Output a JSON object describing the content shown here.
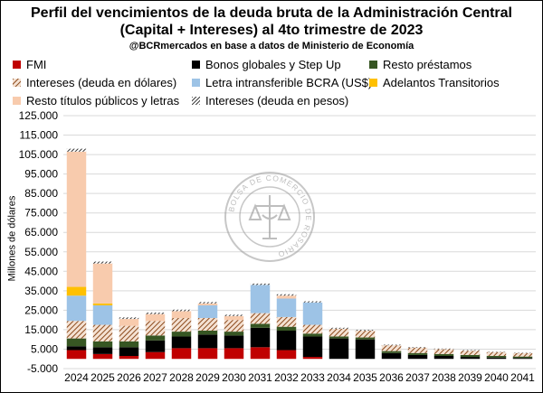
{
  "title_line1": "Perfil del vencimientos de la deuda bruta de la Administración Central",
  "title_line2": "(Capital + Intereses) al 4to trimestre de 2023",
  "subtitle": "@BCRmercados en base a datos de Ministerio de Economía",
  "watermark": "BOLSA DE COMERCIO DE ROSARIO",
  "chart_data": {
    "type": "bar",
    "stacked": true,
    "ylabel": "Millones de dólares",
    "ylim": [
      -5000,
      125000
    ],
    "yticks": [
      "-5.000",
      "5.000",
      "15.000",
      "25.000",
      "35.000",
      "45.000",
      "55.000",
      "65.000",
      "75.000",
      "85.000",
      "95.000",
      "105.000",
      "115.000",
      "125.000"
    ],
    "ytick_values": [
      -5000,
      5000,
      15000,
      25000,
      35000,
      45000,
      55000,
      65000,
      75000,
      85000,
      95000,
      105000,
      115000,
      125000
    ],
    "grid": true,
    "legend_position": "top",
    "categories": [
      "2024",
      "2025",
      "2026",
      "2027",
      "2028",
      "2029",
      "2030",
      "2031",
      "2032",
      "2033",
      "2034",
      "2035",
      "2036",
      "2037",
      "2038",
      "2039",
      "2040",
      "2041"
    ],
    "series": [
      {
        "name": "FMI",
        "color": "#c00000",
        "pattern": "solid",
        "values": [
          4500,
          2500,
          1500,
          3500,
          5500,
          5500,
          5500,
          6000,
          4500,
          1000,
          0,
          0,
          0,
          0,
          0,
          0,
          0,
          0
        ]
      },
      {
        "name": "Bonos globales y Step Up",
        "color": "#000000",
        "pattern": "solid",
        "values": [
          2000,
          3500,
          4500,
          6000,
          6000,
          7000,
          6500,
          10000,
          10000,
          10500,
          10500,
          10000,
          3000,
          2000,
          1500,
          1000,
          700,
          500
        ]
      },
      {
        "name": "Resto préstamos",
        "color": "#375623",
        "pattern": "solid",
        "values": [
          4000,
          3000,
          3000,
          2500,
          2500,
          2000,
          2000,
          2000,
          2000,
          1500,
          1000,
          1000,
          1000,
          1000,
          1000,
          1000,
          800,
          700
        ]
      },
      {
        "name": "Intereses (deuda en dólares)",
        "color": "#c55a11",
        "pattern": "hatch",
        "values": [
          9000,
          8500,
          8000,
          7500,
          7000,
          6500,
          6000,
          5500,
          5000,
          4500,
          4000,
          3500,
          3000,
          2800,
          2500,
          2200,
          2000,
          1800
        ]
      },
      {
        "name": "Letra intransferible BCRA (US$)",
        "color": "#9dc3e6",
        "pattern": "solid",
        "values": [
          13000,
          10000,
          0,
          0,
          0,
          6500,
          0,
          14500,
          9500,
          11500,
          0,
          0,
          0,
          0,
          0,
          0,
          0,
          0
        ]
      },
      {
        "name": "Adelantos Transitorios",
        "color": "#ffc000",
        "pattern": "solid",
        "values": [
          4500,
          1000,
          0,
          0,
          0,
          0,
          0,
          0,
          0,
          0,
          0,
          0,
          0,
          0,
          0,
          0,
          0,
          0
        ]
      },
      {
        "name": "Resto títulos públicos y letras",
        "color": "#f8cbad",
        "pattern": "solid",
        "values": [
          69500,
          20500,
          3500,
          3500,
          3500,
          1000,
          2000,
          0,
          1500,
          0,
          0,
          0,
          0,
          0,
          0,
          0,
          0,
          0
        ]
      },
      {
        "name": "Intereses (deuda en pesos)",
        "color": "#000000",
        "pattern": "hatch-dark",
        "values": [
          1500,
          1000,
          800,
          800,
          800,
          700,
          700,
          700,
          700,
          600,
          500,
          400,
          300,
          300,
          300,
          300,
          200,
          200
        ]
      }
    ]
  }
}
